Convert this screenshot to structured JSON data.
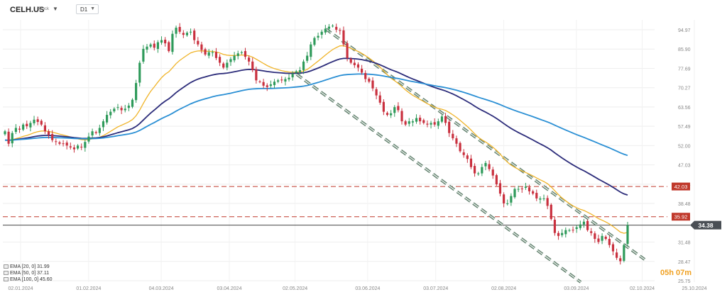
{
  "header": {
    "symbol": "CELH.US",
    "symbol_type": "Stock",
    "timeframe": "D1"
  },
  "countdown": "05h 07m",
  "legend": [
    {
      "label": "EMA [20, 0] 31.99",
      "color": "#f0b429"
    },
    {
      "label": "EMA [50, 0] 37.11",
      "color": "#2c2c7a"
    },
    {
      "label": "EMA [100, 0] 45.60",
      "color": "#2a8fd4"
    }
  ],
  "chart_data": {
    "type": "candlestick",
    "yticks": [
      "94.97",
      "85.90",
      "77.69",
      "70.27",
      "63.56",
      "57.49",
      "52.00",
      "47.03",
      "42.54",
      "38.48",
      "31.48",
      "28.47",
      "25.75"
    ],
    "xticks": [
      "02.01.2024",
      "01.02.2024",
      "04.03.2024",
      "03.04.2024",
      "02.05.2024",
      "03.06.2024",
      "03.07.2024",
      "02.08.2024",
      "03.09.2024",
      "02.10.2024",
      "25.10.2024"
    ],
    "current_price": "34.38",
    "horizontal_levels": [
      {
        "label": "42.03",
        "value": 42.03,
        "color": "#c0392b"
      },
      {
        "label": "35.92",
        "value": 35.92,
        "color": "#c0392b"
      }
    ],
    "colors": {
      "up": "#2e9a5a",
      "down": "#c9303e",
      "ema20": "#f0b429",
      "ema50": "#2c2c7a",
      "ema100": "#2a8fd4",
      "channel": "#5a7a66",
      "price_line": "#444444"
    },
    "closes": [
      56.0,
      52.5,
      55.5,
      57.0,
      56.5,
      58.0,
      57.5,
      58.5,
      59.5,
      58.8,
      58.0,
      56.0,
      55.0,
      53.5,
      53.0,
      52.5,
      52.5,
      52.0,
      51.5,
      51.0,
      52.0,
      51.5,
      53.0,
      54.5,
      56.0,
      55.5,
      57.0,
      59.0,
      61.0,
      62.0,
      63.0,
      63.5,
      62.5,
      63.0,
      64.0,
      66.0,
      72.0,
      80.0,
      86.0,
      87.0,
      88.0,
      86.5,
      89.0,
      90.0,
      88.5,
      85.0,
      93.0,
      96.0,
      94.0,
      92.5,
      93.5,
      94.0,
      90.0,
      88.0,
      85.5,
      83.5,
      84.5,
      84.5,
      82.0,
      80.0,
      78.0,
      80.0,
      81.5,
      83.0,
      84.0,
      84.5,
      82.5,
      80.5,
      77.0,
      73.0,
      72.5,
      71.0,
      70.5,
      71.5,
      72.5,
      73.0,
      73.0,
      73.5,
      74.0,
      75.5,
      76.5,
      77.0,
      80.5,
      83.0,
      88.0,
      91.0,
      92.0,
      94.0,
      95.5,
      96.5,
      97.0,
      95.0,
      94.5,
      88.0,
      82.0,
      80.0,
      79.0,
      78.0,
      76.0,
      73.5,
      72.5,
      70.0,
      67.5,
      65.0,
      62.0,
      61.0,
      61.5,
      63.5,
      62.5,
      59.0,
      58.0,
      59.0,
      59.0,
      60.0,
      59.0,
      58.5,
      58.0,
      58.5,
      58.0,
      59.0,
      60.5,
      58.5,
      55.5,
      54.0,
      52.5,
      50.5,
      49.5,
      48.5,
      46.5,
      45.0,
      45.0,
      46.5,
      47.5,
      46.0,
      44.5,
      42.5,
      40.5,
      38.5,
      38.5,
      40.0,
      41.5,
      41.5,
      41.5,
      42.0,
      41.0,
      40.5,
      39.5,
      39.5,
      39.5,
      38.0,
      35.5,
      33.0,
      32.5,
      33.0,
      33.5,
      33.5,
      33.5,
      34.0,
      34.5,
      35.0,
      33.5,
      33.0,
      32.0,
      31.5,
      32.5,
      32.0,
      31.0,
      30.0,
      29.0,
      28.5,
      31.0,
      34.38
    ]
  }
}
